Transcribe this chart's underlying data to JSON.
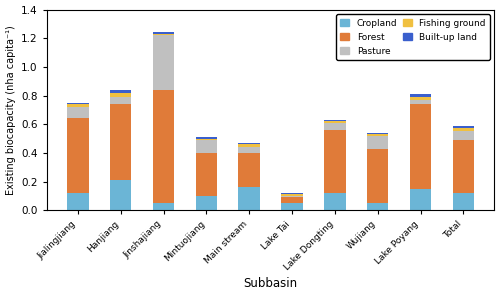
{
  "categories": [
    "Jialingjiang",
    "Hanjiang",
    "Jinshajiang",
    "Mintuojiang",
    "Main stream",
    "Lake Tai",
    "Lake Dongting",
    "Wujiang",
    "Lake Poyang",
    "Total"
  ],
  "cropland": [
    0.12,
    0.21,
    0.05,
    0.1,
    0.16,
    0.05,
    0.12,
    0.05,
    0.15,
    0.12
  ],
  "forest": [
    0.52,
    0.53,
    0.79,
    0.3,
    0.24,
    0.04,
    0.44,
    0.38,
    0.59,
    0.37
  ],
  "pasture": [
    0.08,
    0.05,
    0.38,
    0.09,
    0.04,
    0.01,
    0.05,
    0.09,
    0.03,
    0.06
  ],
  "fishing_ground": [
    0.02,
    0.03,
    0.01,
    0.01,
    0.02,
    0.01,
    0.01,
    0.01,
    0.02,
    0.02
  ],
  "builtup_land": [
    0.01,
    0.02,
    0.01,
    0.01,
    0.01,
    0.01,
    0.01,
    0.01,
    0.02,
    0.02
  ],
  "colors": {
    "cropland": "#6BB5D6",
    "forest": "#E07B39",
    "pasture": "#C0C0C0",
    "fishing_ground": "#F0C040",
    "builtup_land": "#3A5FCD"
  },
  "ylabel": "Existing biocapacity (nha capita⁻¹)",
  "xlabel": "Subbasin",
  "ylim": [
    0,
    1.4
  ],
  "yticks": [
    0.0,
    0.2,
    0.4,
    0.6,
    0.8,
    1.0,
    1.2,
    1.4
  ]
}
